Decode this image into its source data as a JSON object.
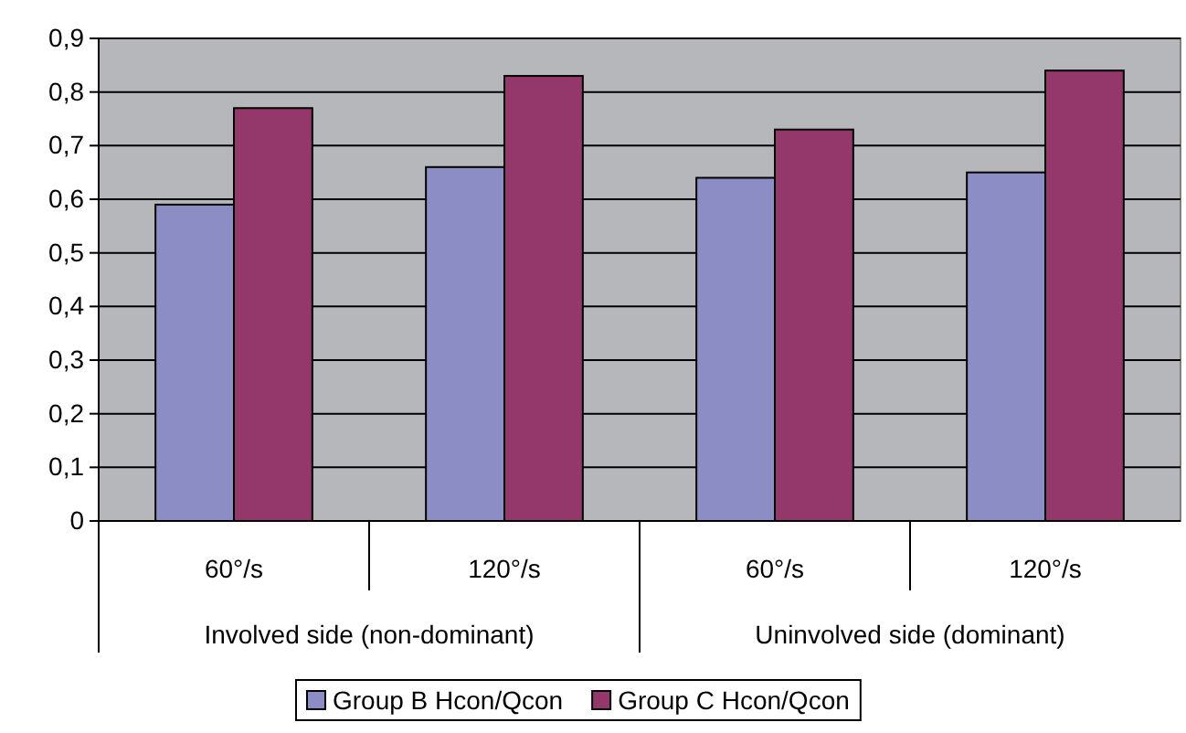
{
  "chart_data": {
    "type": "bar",
    "categories": [
      "60°/s",
      "120°/s",
      "60°/s",
      "120°/s"
    ],
    "series": [
      {
        "name": "Group B Hcon/Qcon",
        "color": "#8b8dc4",
        "values": [
          0.59,
          0.66,
          0.64,
          0.65
        ]
      },
      {
        "name": "Group C Hcon/Qcon",
        "color": "#94376a",
        "values": [
          0.77,
          0.83,
          0.73,
          0.84
        ]
      }
    ],
    "ylim": [
      0,
      0.9
    ],
    "yticks": [
      0,
      {
        "value": 0.1,
        "label": "0,1"
      },
      {
        "value": 0.2,
        "label": "0,2"
      },
      {
        "value": 0.3,
        "label": "0,3"
      },
      {
        "value": 0.4,
        "label": "0,4"
      },
      {
        "value": 0.5,
        "label": "0,5"
      },
      {
        "value": 0.6,
        "label": "0,6"
      },
      {
        "value": 0.7,
        "label": "0,7"
      },
      {
        "value": 0.8,
        "label": "0,8"
      },
      {
        "value": 0.9,
        "label": "0,9"
      }
    ],
    "grid": "y",
    "legend": "bottom",
    "annotations": [
      "Involved side (non-dominant)",
      "Uninvolved side (dominant)"
    ]
  }
}
